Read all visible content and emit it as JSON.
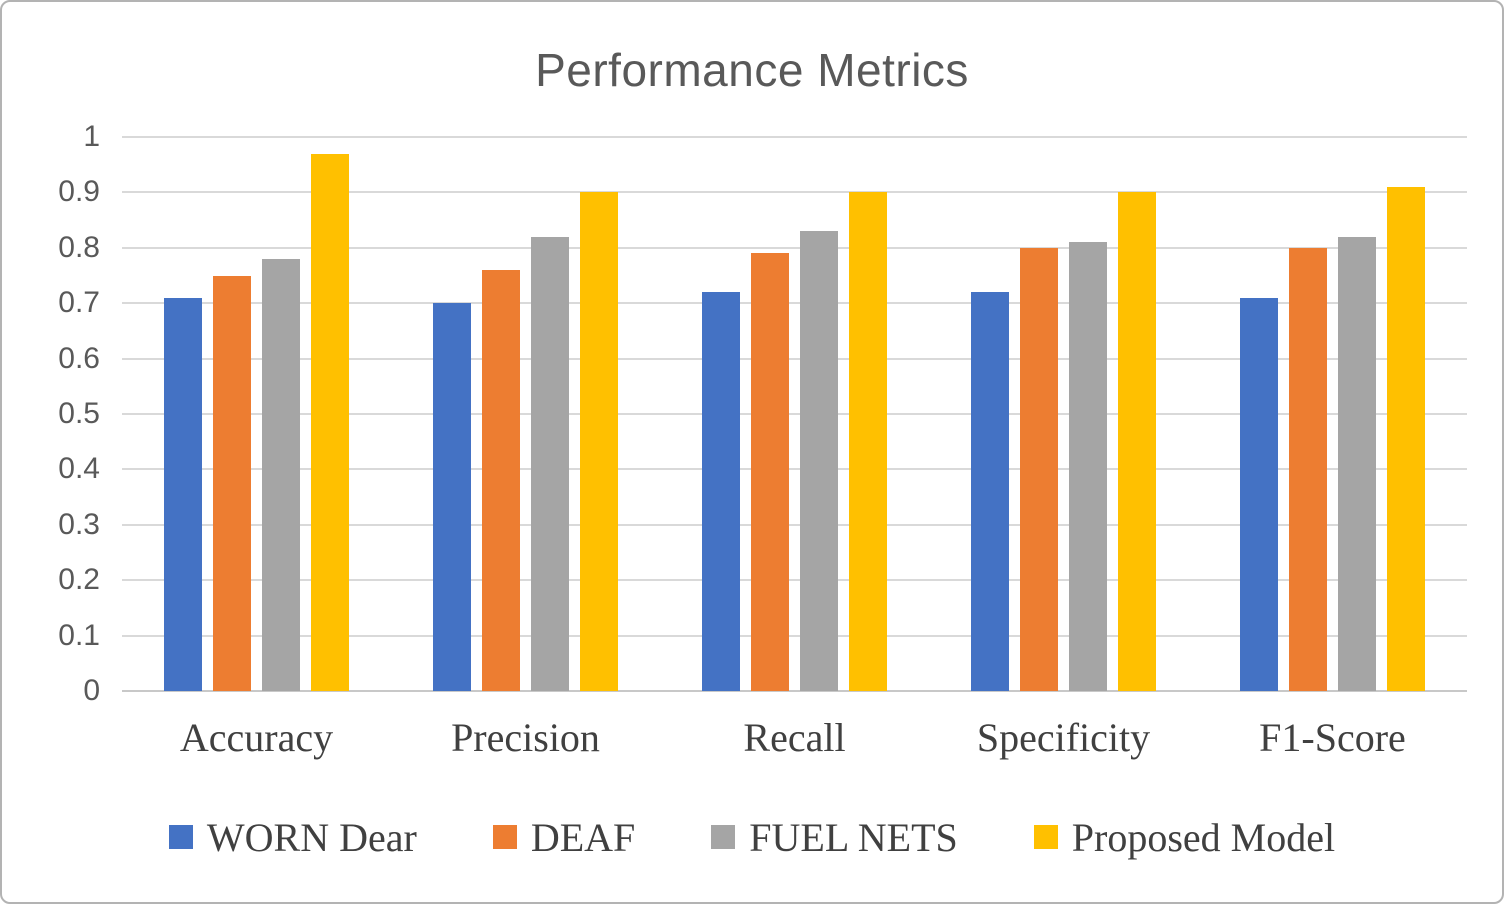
{
  "chart_data": {
    "type": "bar",
    "title": "Performance Metrics",
    "categories": [
      "Accuracy",
      "Precision",
      "Recall",
      "Specificity",
      "F1-Score"
    ],
    "series": [
      {
        "name": "WORN Dear",
        "color": "#4472C4",
        "values": [
          0.71,
          0.7,
          0.72,
          0.72,
          0.71
        ]
      },
      {
        "name": "DEAF",
        "color": "#ED7D31",
        "values": [
          0.75,
          0.76,
          0.79,
          0.8,
          0.8
        ]
      },
      {
        "name": "FUEL NETS",
        "color": "#A5A5A5",
        "values": [
          0.78,
          0.82,
          0.83,
          0.81,
          0.82
        ]
      },
      {
        "name": "Proposed Model",
        "color": "#FFC000",
        "values": [
          0.97,
          0.9,
          0.9,
          0.9,
          0.91
        ]
      }
    ],
    "xlabel": "",
    "ylabel": "",
    "ylim": [
      0,
      1
    ],
    "yticks": [
      0,
      0.1,
      0.2,
      0.3,
      0.4,
      0.5,
      0.6,
      0.7,
      0.8,
      0.9,
      1
    ],
    "ytick_labels": [
      "0",
      "0.1",
      "0.2",
      "0.3",
      "0.4",
      "0.5",
      "0.6",
      "0.7",
      "0.8",
      "0.9",
      "1"
    ],
    "grid": true,
    "legend_position": "bottom",
    "colors": {
      "grid": "#D9D9D9",
      "axis_line": "#C8C8C8",
      "title_text": "#595959",
      "tick_text": "#595959",
      "label_text": "#404040",
      "frame_border": "#B3B3B3",
      "background": "#FFFFFF"
    }
  }
}
